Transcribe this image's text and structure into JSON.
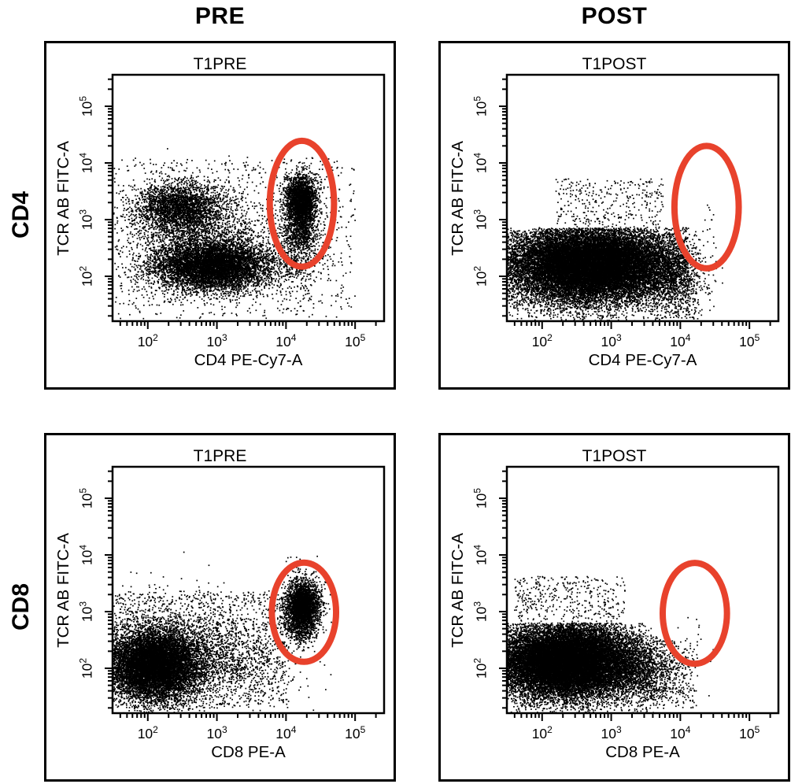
{
  "figure": {
    "background": "#ffffff",
    "ink": "#000000",
    "gate_color": "#e8422c",
    "col_headers": [
      "PRE",
      "POST"
    ],
    "row_headers": [
      "CD4",
      "CD8"
    ]
  },
  "axes": {
    "scale": "log",
    "tick_base": "10",
    "major_exponents": [
      2,
      3,
      4,
      5
    ],
    "x_log_range": [
      1.49,
      5.42
    ],
    "y_log_range": [
      1.21,
      5.56
    ],
    "grid": false
  },
  "chart_data": [
    {
      "type": "scatter",
      "panel": "CD4-PRE",
      "title": "T1PRE",
      "xlabel": "CD4 PE-Cy7-A",
      "ylabel": "TCR AB FITC-A",
      "gate_ellipse": {
        "cx_log": 4.23,
        "cy_log": 3.28,
        "rx_decades": 0.465,
        "ry_decades": 1.11
      },
      "seed": 11,
      "populations": [
        {
          "name": "tcr-pos-cd4-neg",
          "shape": "gaussian",
          "cx": 2.45,
          "cy": 3.22,
          "sx": 0.3,
          "sy": 0.22,
          "n": 2600
        },
        {
          "name": "tcr-neg-bulk",
          "shape": "gaussian",
          "cx": 2.95,
          "cy": 2.18,
          "sx": 0.42,
          "sy": 0.22,
          "n": 6500,
          "clamp": true
        },
        {
          "name": "diffuse-bridge",
          "shape": "gaussian",
          "cx": 2.7,
          "cy": 2.7,
          "sx": 0.52,
          "sy": 0.45,
          "n": 1800
        },
        {
          "name": "cd4-pos-tcr-pos-gated",
          "shape": "gaussian",
          "cx": 4.22,
          "cy": 3.33,
          "sx": 0.11,
          "sy": 0.23,
          "n": 2600
        },
        {
          "name": "gated-tail",
          "shape": "gaussian",
          "cx": 4.2,
          "cy": 2.78,
          "sx": 0.12,
          "sy": 0.18,
          "n": 600
        },
        {
          "name": "below-gate",
          "shape": "gaussian",
          "cx": 4.15,
          "cy": 2.3,
          "sx": 0.2,
          "sy": 0.28,
          "n": 420
        },
        {
          "name": "background",
          "shape": "uniform",
          "x0": 1.5,
          "x1": 5.0,
          "y0": 1.25,
          "y1": 4.1,
          "n": 900
        }
      ]
    },
    {
      "type": "scatter",
      "panel": "CD4-POST",
      "title": "T1POST",
      "xlabel": "CD4 PE-Cy7-A",
      "ylabel": "TCR AB FITC-A",
      "gate_ellipse": {
        "cx_log": 4.38,
        "cy_log": 3.22,
        "rx_decades": 0.465,
        "ry_decades": 1.08
      },
      "seed": 22,
      "populations": [
        {
          "name": "tcr-neg-bulk",
          "shape": "gaussian",
          "cx": 2.7,
          "cy": 2.2,
          "sx": 0.62,
          "sy": 0.33,
          "n": 22000,
          "ymax": 2.85,
          "xmax": 4.12,
          "clamp": true
        },
        {
          "name": "right-tail",
          "shape": "gaussian",
          "cx": 3.95,
          "cy": 2.05,
          "sx": 0.22,
          "sy": 0.38,
          "n": 900,
          "ymax": 2.85,
          "clamp": true
        },
        {
          "name": "above-scatter",
          "shape": "uniform",
          "x0": 2.2,
          "x1": 3.75,
          "y0": 2.86,
          "y1": 3.72,
          "n": 330
        },
        {
          "name": "sparse-low",
          "shape": "uniform",
          "x0": 1.5,
          "x1": 4.3,
          "y0": 1.25,
          "y1": 2.86,
          "n": 650
        },
        {
          "name": "gate-dots",
          "shape": "uniform",
          "x0": 4.15,
          "x1": 4.55,
          "y0": 2.5,
          "y1": 3.35,
          "n": 14
        }
      ]
    },
    {
      "type": "scatter",
      "panel": "CD8-PRE",
      "title": "T1PRE",
      "xlabel": "CD8 PE-A",
      "ylabel": "TCR AB FITC-A",
      "gate_ellipse": {
        "cx_log": 4.26,
        "cy_log": 2.99,
        "rx_decades": 0.465,
        "ry_decades": 0.875
      },
      "seed": 33,
      "populations": [
        {
          "name": "tcr-neg-bulk",
          "shape": "gaussian",
          "cx": 2.1,
          "cy": 2.05,
          "sx": 0.32,
          "sy": 0.3,
          "n": 9500,
          "clamp": true
        },
        {
          "name": "halo",
          "shape": "gaussian",
          "cx": 2.3,
          "cy": 2.3,
          "sx": 0.6,
          "sy": 0.5,
          "n": 1400
        },
        {
          "name": "mid-band",
          "shape": "gaussian",
          "cx": 2.95,
          "cy": 2.2,
          "sx": 0.6,
          "sy": 0.32,
          "n": 1000
        },
        {
          "name": "background",
          "shape": "uniform",
          "x0": 1.5,
          "x1": 4.05,
          "y0": 1.3,
          "y1": 3.35,
          "n": 1500
        },
        {
          "name": "cd8-pos-tcr-pos-gated",
          "shape": "gaussian",
          "cx": 4.24,
          "cy": 3.12,
          "sx": 0.12,
          "sy": 0.2,
          "n": 2800
        },
        {
          "name": "gated-tail",
          "shape": "gaussian",
          "cx": 4.22,
          "cy": 2.7,
          "sx": 0.12,
          "sy": 0.14,
          "n": 450
        },
        {
          "name": "above-gate",
          "shape": "uniform",
          "x0": 3.9,
          "x1": 4.6,
          "y0": 3.5,
          "y1": 4.0,
          "n": 22
        }
      ]
    },
    {
      "type": "scatter",
      "panel": "CD8-POST",
      "title": "T1POST",
      "xlabel": "CD8 PE-A",
      "ylabel": "TCR AB FITC-A",
      "gate_ellipse": {
        "cx_log": 4.21,
        "cy_log": 2.97,
        "rx_decades": 0.465,
        "ry_decades": 0.89
      },
      "seed": 44,
      "populations": [
        {
          "name": "tcr-neg-bulk",
          "shape": "gaussian",
          "cx": 2.35,
          "cy": 2.12,
          "sx": 0.52,
          "sy": 0.33,
          "n": 20000,
          "ymax": 2.8,
          "xmax": 3.62,
          "clamp": true
        },
        {
          "name": "right-tail",
          "shape": "gaussian",
          "cx": 3.45,
          "cy": 1.95,
          "sx": 0.3,
          "sy": 0.3,
          "n": 1400,
          "ymax": 2.6,
          "clamp": true
        },
        {
          "name": "sparse-right",
          "shape": "uniform",
          "x0": 3.6,
          "x1": 4.25,
          "y0": 1.3,
          "y1": 2.5,
          "n": 160
        },
        {
          "name": "above-scatter",
          "shape": "uniform",
          "x0": 1.6,
          "x1": 3.2,
          "y0": 2.82,
          "y1": 3.62,
          "n": 380
        },
        {
          "name": "near-gate-dots",
          "shape": "uniform",
          "x0": 3.95,
          "x1": 4.3,
          "y0": 2.45,
          "y1": 2.95,
          "n": 8
        }
      ]
    }
  ]
}
